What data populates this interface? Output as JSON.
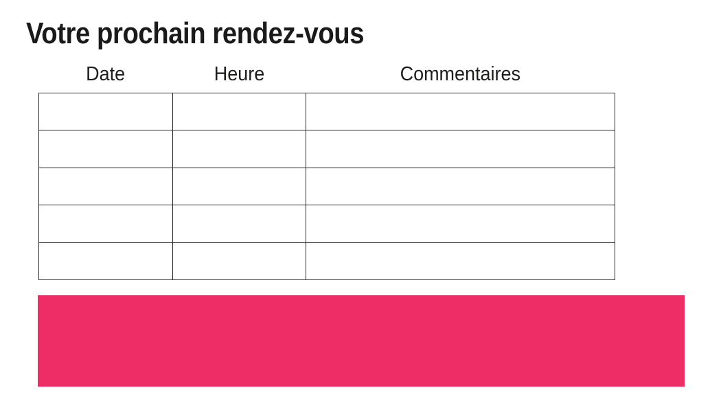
{
  "page": {
    "title": "Votre prochain rendez-vous"
  },
  "table": {
    "headers": [
      "Date",
      "Heure",
      "Commentaires"
    ],
    "rows": [
      [
        "",
        "",
        ""
      ],
      [
        "",
        "",
        ""
      ],
      [
        "",
        "",
        ""
      ],
      [
        "",
        "",
        ""
      ],
      [
        "",
        "",
        ""
      ]
    ]
  },
  "colors": {
    "accent_pink": "#EE2D67",
    "table_border": "#2A2A2A",
    "text": "#1A1A1A"
  }
}
